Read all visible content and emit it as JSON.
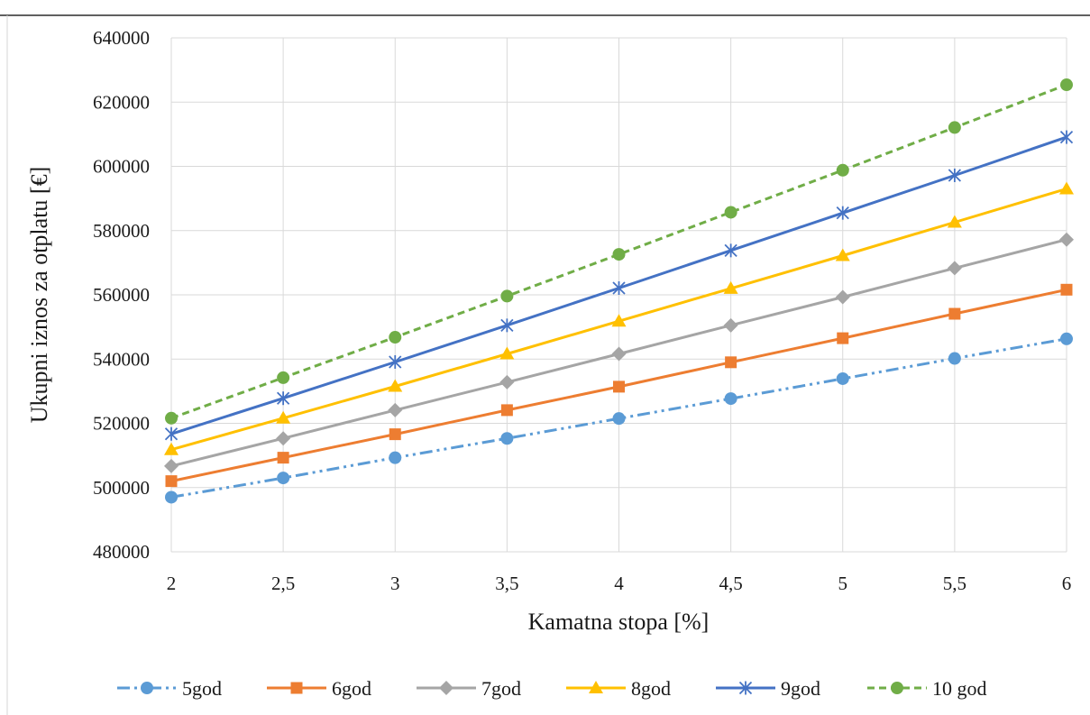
{
  "chart_data": {
    "type": "line",
    "title": "",
    "xlabel": "Kamatna stopa [%]",
    "ylabel": "Ukupni iznos za otplatu [€]",
    "x": [
      2,
      2.5,
      3,
      3.5,
      4,
      4.5,
      5,
      5.5,
      6
    ],
    "x_tick_labels": [
      "2",
      "2,5",
      "3",
      "3,5",
      "4",
      "4,5",
      "5",
      "5,5",
      "6"
    ],
    "ylim": [
      480000,
      640000
    ],
    "y_ticks": [
      480000,
      500000,
      520000,
      540000,
      560000,
      580000,
      600000,
      620000,
      640000
    ],
    "y_tick_labels": [
      "480000",
      "500000",
      "520000",
      "540000",
      "560000",
      "580000",
      "600000",
      "620000",
      "640000"
    ],
    "grid": "on",
    "legend_position": "bottom",
    "series": [
      {
        "name": "5god",
        "color": "#5B9BD5",
        "dash": "dash-dot-dot",
        "marker": "circle",
        "values": [
          497000,
          503000,
          509300,
          515300,
          521500,
          527700,
          533900,
          540200,
          546300
        ]
      },
      {
        "name": "6god",
        "color": "#ED7D31",
        "dash": "solid",
        "marker": "square",
        "values": [
          502000,
          509300,
          516600,
          524100,
          531400,
          539000,
          546500,
          554100,
          561600
        ]
      },
      {
        "name": "7god",
        "color": "#A5A5A5",
        "dash": "solid",
        "marker": "diamond",
        "values": [
          506700,
          515300,
          524100,
          532800,
          541600,
          550500,
          559300,
          568300,
          577200
        ]
      },
      {
        "name": "8god",
        "color": "#FFC000",
        "dash": "solid",
        "marker": "triangle",
        "values": [
          511800,
          521600,
          531500,
          541600,
          551800,
          562000,
          572200,
          582600,
          593000
        ]
      },
      {
        "name": "9god",
        "color": "#4472C4",
        "dash": "solid",
        "marker": "star",
        "values": [
          516700,
          527800,
          539100,
          550500,
          562100,
          573800,
          585500,
          597200,
          609100
        ]
      },
      {
        "name": "10 god",
        "color": "#70AD47",
        "dash": "dashed",
        "marker": "circle",
        "values": [
          521600,
          534200,
          546800,
          559600,
          572600,
          585700,
          598800,
          612100,
          625400
        ]
      }
    ]
  }
}
